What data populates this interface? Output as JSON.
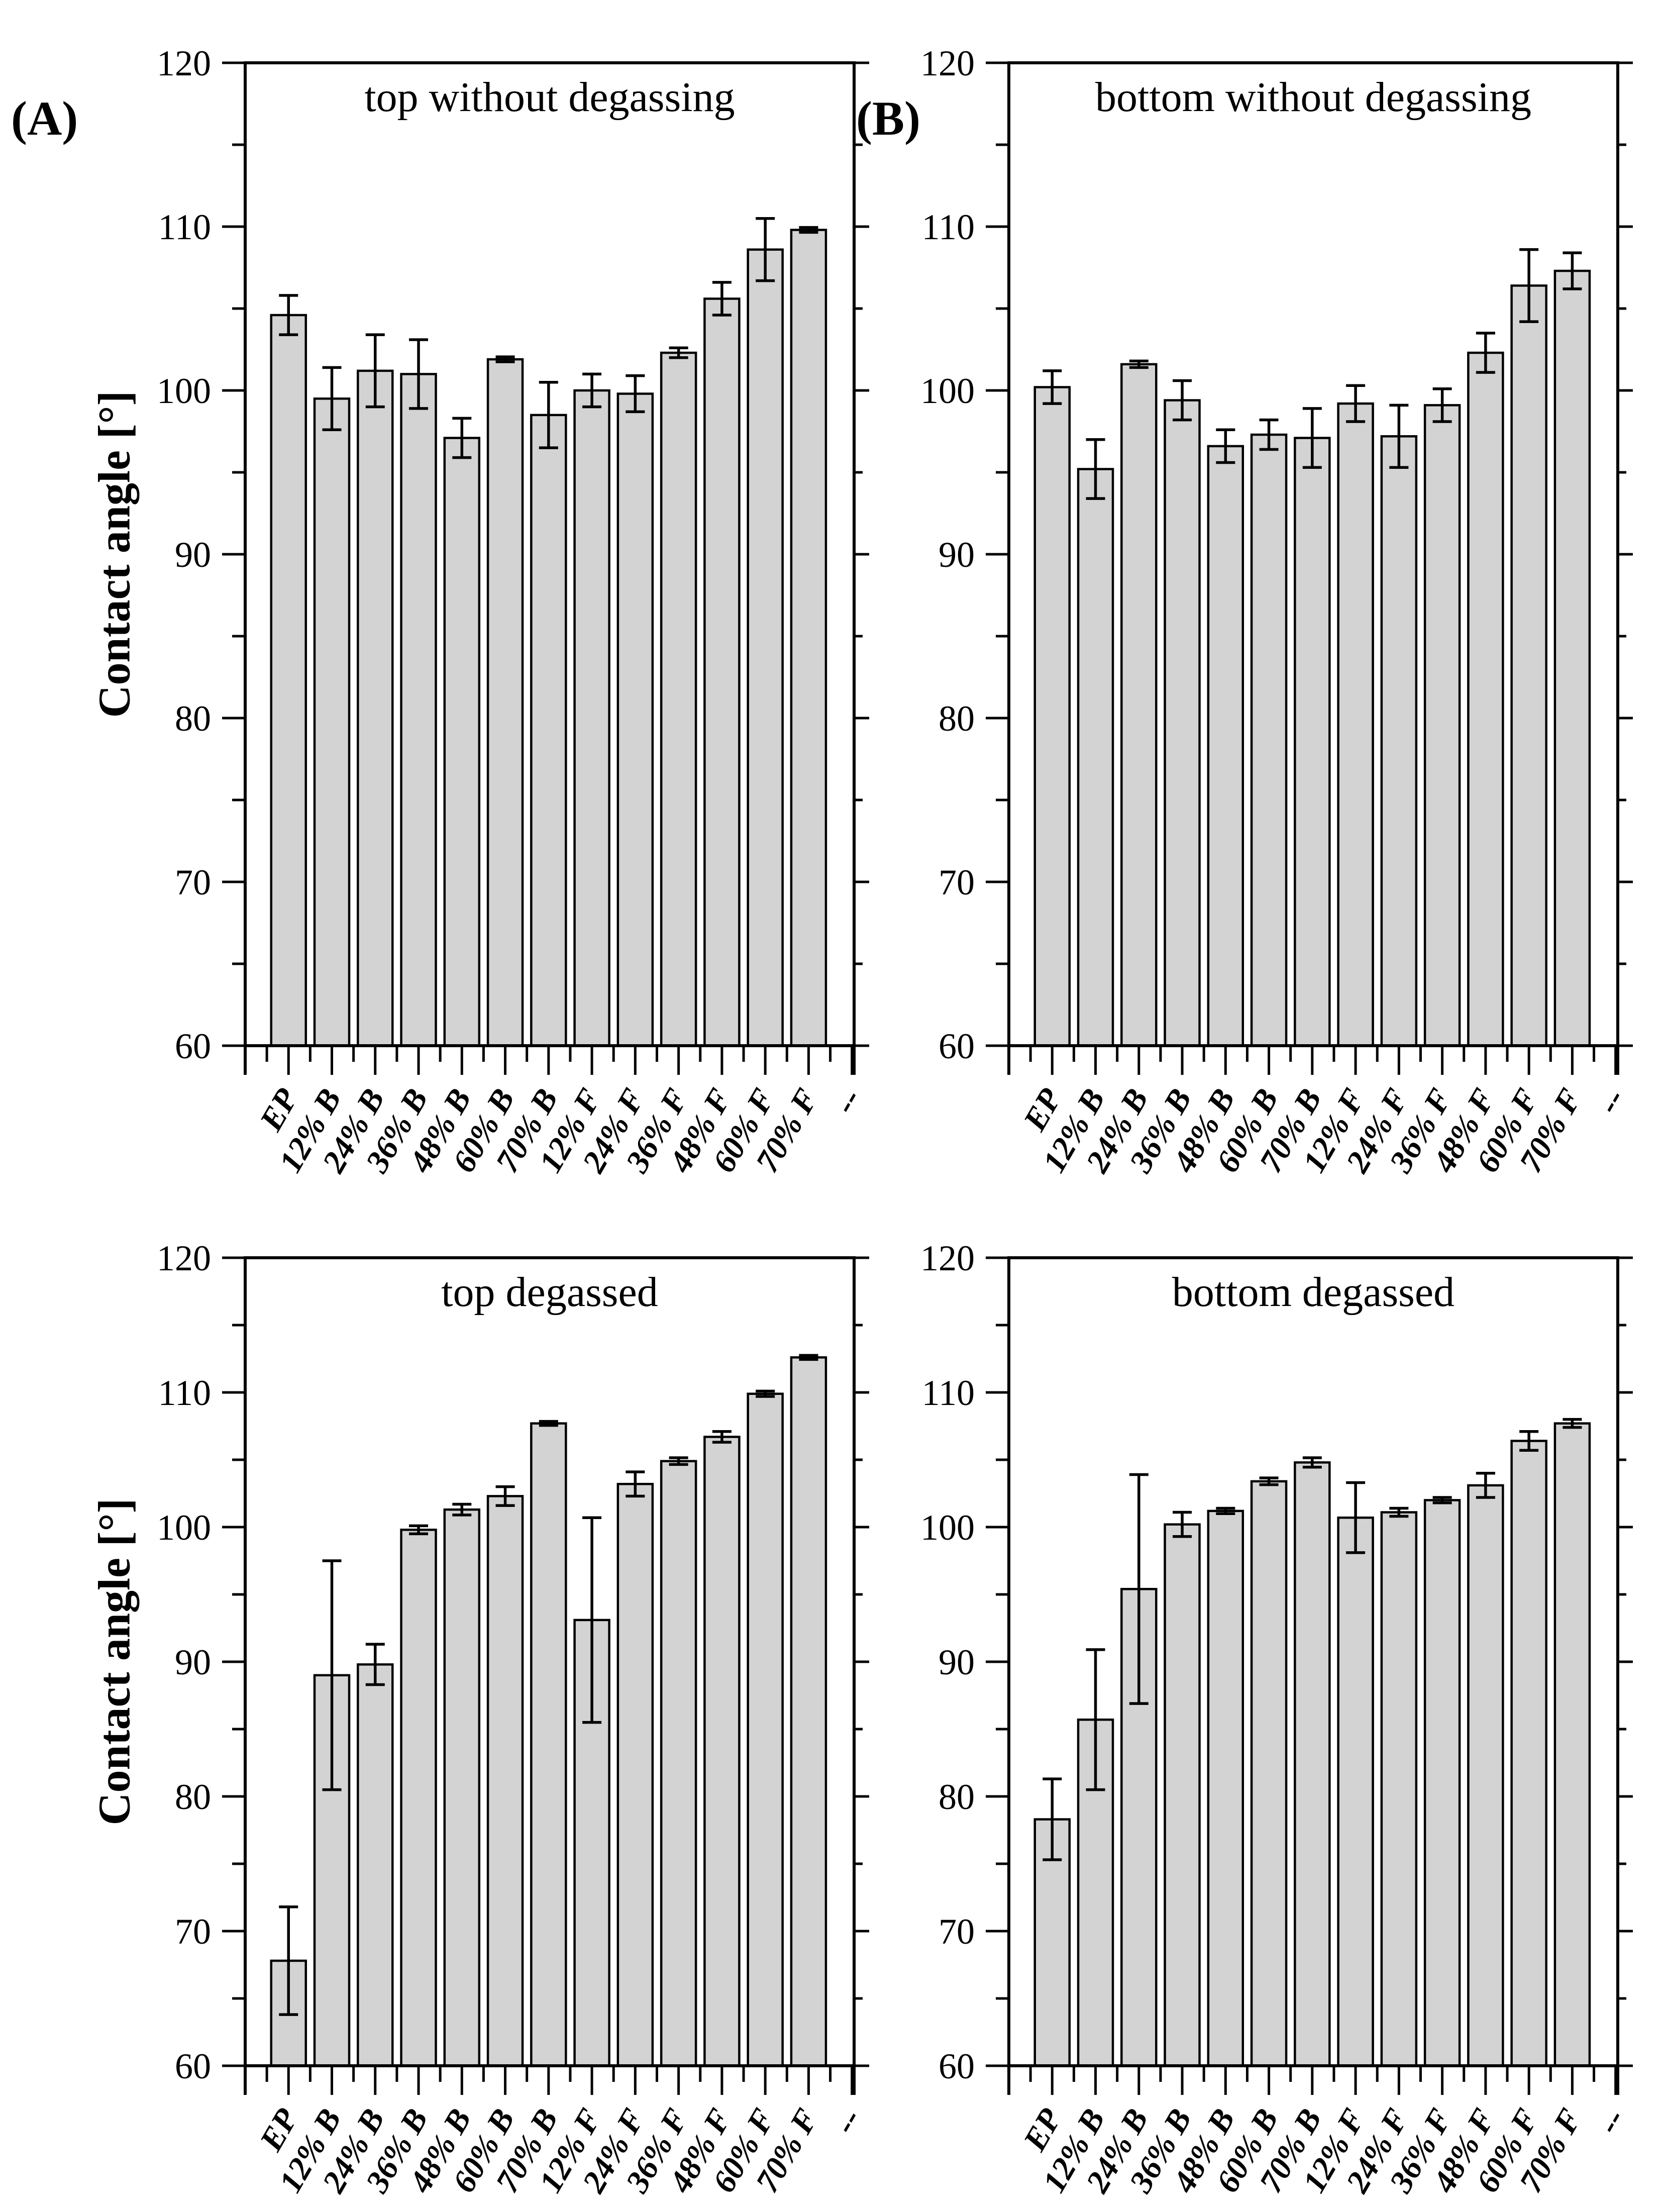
{
  "figure": {
    "panel_labels": {
      "a": "(A)",
      "b": "(B)"
    },
    "y_axis_title": "Contact angle [°]",
    "colors": {
      "bar_fill": "#d3d3d3",
      "stroke": "#000000",
      "background": "#ffffff",
      "text": "#000000"
    }
  },
  "chart_data": [
    {
      "id": "top-without-degassing",
      "type": "bar",
      "title": "top without degassing",
      "xlabel": "",
      "ylabel": "Contact angle [°]",
      "ylim": [
        60,
        120
      ],
      "y_major_ticks": [
        60,
        70,
        80,
        90,
        100,
        110,
        120
      ],
      "y_minor_step": 5,
      "grid": false,
      "legend": "none",
      "categories": [
        "EP",
        "12% B",
        "24% B",
        "36% B",
        "48% B",
        "60% B",
        "70% B",
        "12% F",
        "24% F",
        "36% F",
        "48% F",
        "60% F",
        "70% F",
        "--"
      ],
      "values": [
        104.6,
        99.5,
        101.2,
        101.0,
        97.1,
        101.9,
        98.5,
        100.0,
        99.8,
        102.3,
        105.6,
        108.6,
        109.8
      ],
      "errors": [
        1.2,
        1.9,
        2.2,
        2.1,
        1.2,
        0.15,
        2.0,
        1.0,
        1.1,
        0.3,
        1.0,
        1.9,
        0.15
      ]
    },
    {
      "id": "bottom-without-degassing",
      "type": "bar",
      "title": "bottom without degassing",
      "xlabel": "",
      "ylabel": "Contact angle [°]",
      "ylim": [
        60,
        120
      ],
      "y_major_ticks": [
        60,
        70,
        80,
        90,
        100,
        110,
        120
      ],
      "y_minor_step": 5,
      "grid": false,
      "legend": "none",
      "categories": [
        "EP",
        "12% B",
        "24% B",
        "36% B",
        "48% B",
        "60% B",
        "70% B",
        "12% F",
        "24% F",
        "36% F",
        "48% F",
        "60% F",
        "70% F",
        "--"
      ],
      "values": [
        100.2,
        95.2,
        101.6,
        99.4,
        96.6,
        97.3,
        97.1,
        99.2,
        97.2,
        99.1,
        102.3,
        106.4,
        107.3
      ],
      "errors": [
        1.0,
        1.8,
        0.2,
        1.2,
        1.0,
        0.9,
        1.8,
        1.1,
        1.9,
        1.0,
        1.2,
        2.2,
        1.1
      ]
    },
    {
      "id": "top-degassed",
      "type": "bar",
      "title": "top degassed",
      "xlabel": "",
      "ylabel": "Contact angle [°]",
      "ylim": [
        60,
        120
      ],
      "y_major_ticks": [
        60,
        70,
        80,
        90,
        100,
        110,
        120
      ],
      "y_minor_step": 5,
      "grid": false,
      "legend": "none",
      "categories": [
        "EP",
        "12% B",
        "24% B",
        "36% B",
        "48% B",
        "60% B",
        "70% B",
        "12% F",
        "24% F",
        "36% F",
        "48% F",
        "60% F",
        "70% F",
        "--"
      ],
      "values": [
        67.8,
        89.0,
        89.8,
        99.8,
        101.3,
        102.3,
        107.7,
        93.1,
        103.2,
        104.9,
        106.7,
        109.9,
        112.6
      ],
      "errors": [
        4.0,
        8.5,
        1.5,
        0.3,
        0.4,
        0.7,
        0.15,
        7.6,
        0.9,
        0.25,
        0.4,
        0.2,
        0.15
      ]
    },
    {
      "id": "bottom-degassed",
      "type": "bar",
      "title": "bottom degassed",
      "xlabel": "",
      "ylabel": "Contact angle [°]",
      "ylim": [
        60,
        120
      ],
      "y_major_ticks": [
        60,
        70,
        80,
        90,
        100,
        110,
        120
      ],
      "y_minor_step": 5,
      "grid": false,
      "legend": "none",
      "categories": [
        "EP",
        "12% B",
        "24% B",
        "36% B",
        "48% B",
        "60% B",
        "70% B",
        "12% F",
        "24% F",
        "36% F",
        "48% F",
        "60% F",
        "70% F",
        "--"
      ],
      "values": [
        78.3,
        85.7,
        95.4,
        100.2,
        101.2,
        103.4,
        104.8,
        100.7,
        101.1,
        102.0,
        103.1,
        106.4,
        107.7
      ],
      "errors": [
        3.0,
        5.2,
        8.5,
        0.9,
        0.2,
        0.25,
        0.35,
        2.6,
        0.3,
        0.2,
        0.9,
        0.7,
        0.3
      ]
    }
  ]
}
